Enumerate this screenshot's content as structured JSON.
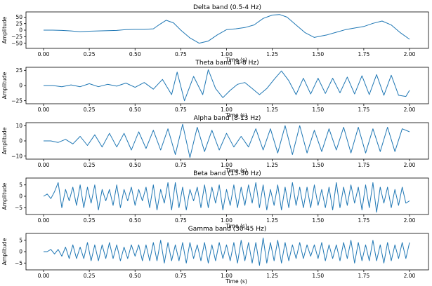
{
  "chart_data": [
    {
      "type": "line",
      "title": "Delta band (0.5-4 Hz)",
      "xlabel": "Time (s)",
      "ylabel": "Amplitude",
      "xlim": [
        0.0,
        2.0
      ],
      "ylim": [
        -70,
        70
      ],
      "xticks": [
        "0.00",
        "0.25",
        "0.50",
        "0.75",
        "1.00",
        "1.25",
        "1.50",
        "1.75",
        "2.00"
      ],
      "yticks": [
        50,
        25,
        0,
        -25,
        -50
      ],
      "ytick_labels": [
        "50",
        "25",
        "0",
        "−25",
        "−50"
      ],
      "color": "#1f77b4",
      "x": [
        0.0,
        0.05,
        0.1,
        0.15,
        0.2,
        0.25,
        0.3,
        0.35,
        0.4,
        0.45,
        0.5,
        0.55,
        0.6,
        0.63,
        0.67,
        0.71,
        0.75,
        0.8,
        0.85,
        0.9,
        0.95,
        1.0,
        1.05,
        1.1,
        1.15,
        1.2,
        1.25,
        1.29,
        1.33,
        1.38,
        1.43,
        1.48,
        1.5,
        1.55,
        1.6,
        1.65,
        1.7,
        1.75,
        1.8,
        1.85,
        1.9,
        1.95,
        2.0
      ],
      "y": [
        0,
        0,
        -1,
        -3,
        -6,
        -4,
        -3,
        -2,
        -1,
        2,
        3,
        3,
        5,
        20,
        38,
        28,
        0,
        -30,
        -50,
        -42,
        -18,
        2,
        5,
        10,
        20,
        45,
        58,
        60,
        50,
        20,
        -10,
        -28,
        -25,
        -18,
        -8,
        2,
        8,
        14,
        26,
        35,
        20,
        -10,
        -35
      ]
    },
    {
      "type": "line",
      "title": "Theta band (4-8 Hz)",
      "xlabel": "Time (s)",
      "ylabel": "Amplitude",
      "xlim": [
        0.0,
        2.0
      ],
      "ylim": [
        -30,
        30
      ],
      "xticks": [
        "0.00",
        "0.25",
        "0.50",
        "0.75",
        "1.00",
        "1.25",
        "1.50",
        "1.75",
        "2.00"
      ],
      "yticks": [
        25,
        0,
        -25
      ],
      "ytick_labels": [
        "25",
        "0",
        "−25"
      ],
      "color": "#1f77b4",
      "x": [
        0.0,
        0.05,
        0.1,
        0.15,
        0.2,
        0.25,
        0.3,
        0.35,
        0.4,
        0.45,
        0.5,
        0.55,
        0.6,
        0.65,
        0.7,
        0.73,
        0.77,
        0.82,
        0.87,
        0.9,
        0.94,
        0.98,
        1.02,
        1.06,
        1.1,
        1.14,
        1.18,
        1.22,
        1.26,
        1.3,
        1.34,
        1.38,
        1.42,
        1.46,
        1.5,
        1.54,
        1.58,
        1.62,
        1.66,
        1.7,
        1.74,
        1.78,
        1.82,
        1.86,
        1.9,
        1.94,
        1.98,
        2.0
      ],
      "y": [
        0,
        0,
        -2,
        1,
        -2,
        3,
        -2,
        2,
        -1,
        4,
        -3,
        5,
        -6,
        10,
        -15,
        22,
        -25,
        15,
        -15,
        26,
        -5,
        -20,
        -8,
        2,
        5,
        -5,
        -15,
        -5,
        10,
        24,
        8,
        -15,
        12,
        -14,
        12,
        -13,
        12,
        -12,
        14,
        -14,
        16,
        -15,
        18,
        -16,
        17,
        -16,
        -18,
        -8
      ]
    },
    {
      "type": "line",
      "title": "Alpha band (8-13 Hz)",
      "xlabel": "Time (s)",
      "ylabel": "Amplitude",
      "xlim": [
        0.0,
        2.0
      ],
      "ylim": [
        -12,
        12
      ],
      "xticks": [
        "0.00",
        "0.25",
        "0.50",
        "0.75",
        "1.00",
        "1.25",
        "1.50",
        "1.75",
        "2.00"
      ],
      "yticks": [
        10,
        0,
        -10
      ],
      "ytick_labels": [
        "10",
        "0",
        "−10"
      ],
      "color": "#1f77b4",
      "x": [
        0.0,
        0.04,
        0.08,
        0.12,
        0.16,
        0.2,
        0.24,
        0.28,
        0.32,
        0.36,
        0.4,
        0.44,
        0.48,
        0.52,
        0.56,
        0.6,
        0.64,
        0.68,
        0.72,
        0.76,
        0.8,
        0.84,
        0.88,
        0.92,
        0.96,
        1.0,
        1.04,
        1.08,
        1.12,
        1.16,
        1.2,
        1.24,
        1.28,
        1.32,
        1.36,
        1.4,
        1.44,
        1.48,
        1.52,
        1.56,
        1.6,
        1.64,
        1.68,
        1.72,
        1.76,
        1.8,
        1.84,
        1.88,
        1.92,
        1.96,
        2.0
      ],
      "y": [
        0,
        0,
        -1,
        1,
        -2,
        3,
        -3,
        4,
        -4,
        5,
        -4,
        5,
        -6,
        6,
        -5,
        7,
        -6,
        8,
        -9,
        11,
        -11,
        9,
        -7,
        7,
        -6,
        5,
        -4,
        3,
        -4,
        8,
        -6,
        8,
        -8,
        10,
        -9,
        10,
        -8,
        7,
        -7,
        8,
        -6,
        9,
        -8,
        9,
        -8,
        8,
        -7,
        9,
        -7,
        8,
        6
      ]
    },
    {
      "type": "line",
      "title": "Beta band (13-30 Hz)",
      "xlabel": "Time (s)",
      "ylabel": "Amplitude",
      "xlim": [
        0.0,
        2.0
      ],
      "ylim": [
        -8,
        8
      ],
      "xticks": [
        "0.00",
        "0.25",
        "0.50",
        "0.75",
        "1.00",
        "1.25",
        "1.50",
        "1.75",
        "2.00"
      ],
      "yticks": [
        5,
        0,
        -5
      ],
      "ytick_labels": [
        "5",
        "0",
        "−5"
      ],
      "color": "#1f77b4",
      "x": [
        0.0,
        0.02,
        0.04,
        0.06,
        0.08,
        0.1,
        0.12,
        0.14,
        0.16,
        0.18,
        0.2,
        0.22,
        0.24,
        0.26,
        0.28,
        0.3,
        0.32,
        0.34,
        0.36,
        0.38,
        0.4,
        0.42,
        0.44,
        0.46,
        0.48,
        0.5,
        0.52,
        0.54,
        0.56,
        0.58,
        0.6,
        0.62,
        0.64,
        0.66,
        0.68,
        0.7,
        0.72,
        0.74,
        0.76,
        0.78,
        0.8,
        0.82,
        0.84,
        0.86,
        0.88,
        0.9,
        0.92,
        0.94,
        0.96,
        0.98,
        1.0,
        1.02,
        1.04,
        1.06,
        1.08,
        1.1,
        1.12,
        1.14,
        1.16,
        1.18,
        1.2,
        1.22,
        1.24,
        1.26,
        1.28,
        1.3,
        1.32,
        1.34,
        1.36,
        1.38,
        1.4,
        1.42,
        1.44,
        1.46,
        1.48,
        1.5,
        1.52,
        1.54,
        1.56,
        1.58,
        1.6,
        1.62,
        1.64,
        1.66,
        1.68,
        1.7,
        1.72,
        1.74,
        1.76,
        1.78,
        1.8,
        1.82,
        1.84,
        1.86,
        1.88,
        1.9,
        1.92,
        1.94,
        1.96,
        1.98,
        2.0
      ],
      "y": [
        0,
        1,
        -1,
        2,
        6,
        -5,
        3,
        -2,
        4,
        -4,
        5,
        -5,
        4,
        -3,
        5,
        -6,
        3,
        -2,
        3,
        -4,
        5,
        -5,
        3,
        -2,
        4,
        -4,
        3,
        -2,
        4,
        -5,
        5,
        -6,
        3,
        -3,
        6,
        -6,
        6,
        -5,
        4,
        -6,
        3,
        -2,
        4,
        -5,
        5,
        -5,
        4,
        -3,
        5,
        -6,
        3,
        -4,
        5,
        -5,
        4,
        -4,
        5,
        -3,
        6,
        -5,
        5,
        -6,
        3,
        -4,
        5,
        -6,
        4,
        -5,
        6,
        -4,
        4,
        -5,
        4,
        -5,
        5,
        -4,
        3,
        -5,
        4,
        -6,
        6,
        -5,
        4,
        -4,
        5,
        -3,
        4,
        -6,
        5,
        -5,
        6,
        -7,
        4,
        -3,
        4,
        -5,
        3,
        -4,
        4,
        -3,
        -2
      ]
    },
    {
      "type": "line",
      "title": "Gamma band (30-45 Hz)",
      "xlabel": "Time (s)",
      "ylabel": "Amplitude",
      "xlim": [
        0.0,
        2.0
      ],
      "ylim": [
        -8,
        8
      ],
      "xticks": [
        "0.00",
        "0.25",
        "0.50",
        "0.75",
        "1.00",
        "1.25",
        "1.50",
        "1.75",
        "2.00"
      ],
      "yticks": [
        5,
        0,
        -5
      ],
      "ytick_labels": [
        "5",
        "0",
        "−5"
      ],
      "color": "#1f77b4",
      "x": [
        0.0,
        0.02,
        0.04,
        0.06,
        0.08,
        0.1,
        0.12,
        0.14,
        0.16,
        0.18,
        0.2,
        0.22,
        0.24,
        0.26,
        0.28,
        0.3,
        0.32,
        0.34,
        0.36,
        0.38,
        0.4,
        0.42,
        0.44,
        0.46,
        0.48,
        0.5,
        0.52,
        0.54,
        0.56,
        0.58,
        0.6,
        0.62,
        0.64,
        0.66,
        0.68,
        0.7,
        0.72,
        0.74,
        0.76,
        0.78,
        0.8,
        0.82,
        0.84,
        0.86,
        0.88,
        0.9,
        0.92,
        0.94,
        0.96,
        0.98,
        1.0,
        1.02,
        1.04,
        1.06,
        1.08,
        1.1,
        1.12,
        1.14,
        1.16,
        1.18,
        1.2,
        1.22,
        1.24,
        1.26,
        1.28,
        1.3,
        1.32,
        1.34,
        1.36,
        1.38,
        1.4,
        1.42,
        1.44,
        1.46,
        1.48,
        1.5,
        1.52,
        1.54,
        1.56,
        1.58,
        1.6,
        1.62,
        1.64,
        1.66,
        1.68,
        1.7,
        1.72,
        1.74,
        1.76,
        1.78,
        1.8,
        1.82,
        1.84,
        1.86,
        1.88,
        1.9,
        1.92,
        1.94,
        1.96,
        1.98,
        2.0
      ],
      "y": [
        0,
        0,
        1,
        -1,
        1,
        -2,
        2,
        -3,
        3,
        -3,
        2,
        -3,
        4,
        -4,
        3,
        -4,
        3,
        -3,
        4,
        -3,
        3,
        -4,
        2,
        -3,
        3,
        -2,
        3,
        -4,
        3,
        -4,
        4,
        -4,
        5,
        -5,
        4,
        -4,
        3,
        -4,
        4,
        -5,
        4,
        -3,
        3,
        -4,
        4,
        -5,
        3,
        -4,
        4,
        -3,
        3,
        -4,
        4,
        -5,
        5,
        -4,
        4,
        -5,
        4,
        -6,
        6,
        -5,
        4,
        -4,
        5,
        -5,
        4,
        -4,
        3,
        -3,
        4,
        -3,
        3,
        -2,
        3,
        -3,
        4,
        -4,
        3,
        -3,
        3,
        -4,
        4,
        -3,
        5,
        -5,
        4,
        -4,
        3,
        -4,
        5,
        -4,
        3,
        -5,
        4,
        -4,
        3,
        -3,
        4,
        -3,
        4
      ]
    }
  ]
}
